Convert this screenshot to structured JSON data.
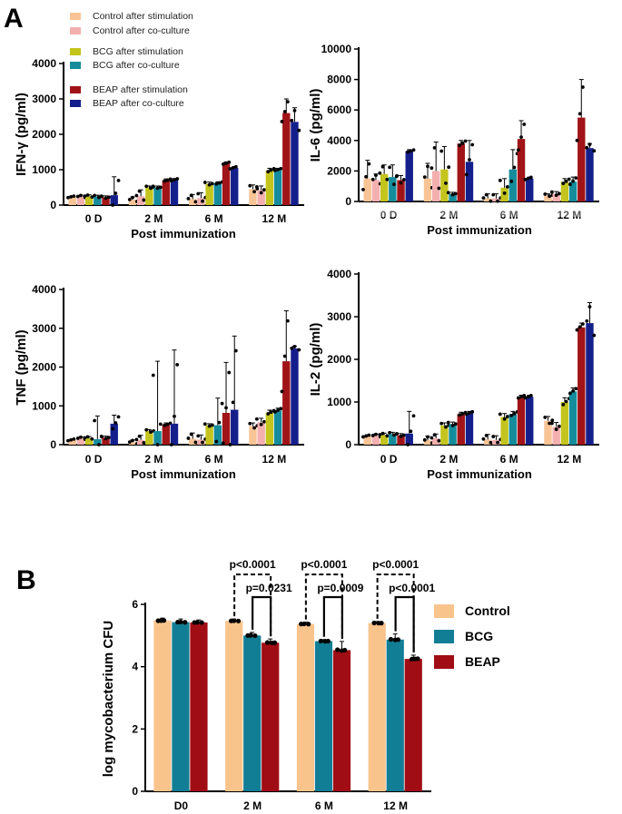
{
  "panels": {
    "a": "A",
    "b": "B"
  },
  "colors": {
    "ctrl_stim": "#F9C495",
    "ctrl_co": "#F4AFAF",
    "bcg_stim": "#C4C41E",
    "bcg_co": "#148C9C",
    "beap_stim": "#A01418",
    "beap_co": "#151F8C",
    "b_control": "#F9C48C",
    "b_bcg": "#127E95",
    "b_beap": "#A10D15"
  },
  "legend_a": [
    {
      "label": "Control after stimulation",
      "color": "#F9C495"
    },
    {
      "label": "Control after co-culture",
      "color": "#F4AFAF"
    },
    {
      "label": "BCG after stimulation",
      "color": "#C4C41E"
    },
    {
      "label": "BCG after co-culture",
      "color": "#148C9C"
    },
    {
      "label": "BEAP after stimulation",
      "color": "#A01418"
    },
    {
      "label": "BEAP after co-culture",
      "color": "#151F8C"
    }
  ],
  "chart_data": [
    {
      "id": "ifng",
      "type": "bar",
      "ylabel": "IFN-γ (pg/ml)",
      "xlabel": "Post immunization",
      "categories": [
        "0 D",
        "2 M",
        "6 M",
        "12 M"
      ],
      "ylim": [
        0,
        4000
      ],
      "yticks": [
        0,
        1000,
        2000,
        3000,
        4000
      ],
      "series": [
        {
          "name": "Control after stimulation",
          "values": [
            230,
            150,
            170,
            450
          ],
          "err": [
            30,
            80,
            130,
            120
          ]
        },
        {
          "name": "Control after co-culture",
          "values": [
            240,
            250,
            200,
            420
          ],
          "err": [
            40,
            180,
            150,
            120
          ]
        },
        {
          "name": "BCG after stimulation",
          "values": [
            250,
            500,
            600,
            980
          ],
          "err": [
            40,
            40,
            50,
            60
          ]
        },
        {
          "name": "BCG after co-culture",
          "values": [
            240,
            500,
            620,
            1000
          ],
          "err": [
            40,
            40,
            40,
            40
          ]
        },
        {
          "name": "BEAP after stimulation",
          "values": [
            220,
            700,
            1180,
            2600
          ],
          "err": [
            40,
            40,
            40,
            400
          ]
        },
        {
          "name": "BEAP after co-culture",
          "values": [
            280,
            710,
            1050,
            2350
          ],
          "err": [
            520,
            40,
            40,
            400
          ]
        }
      ]
    },
    {
      "id": "il6",
      "type": "bar",
      "ylabel": "IL-6 (pg/ml)",
      "xlabel": "Post immunization",
      "categories": [
        "0 D",
        "2 M",
        "6 M",
        "12 M"
      ],
      "ylim": [
        0,
        10000
      ],
      "yticks": [
        0,
        2000,
        4000,
        6000,
        8000,
        10000
      ],
      "series": [
        {
          "name": "Control after stimulation",
          "values": [
            1500,
            1500,
            200,
            400
          ],
          "err": [
            1200,
            1000,
            300,
            100
          ]
        },
        {
          "name": "Control after co-culture",
          "values": [
            1400,
            2000,
            200,
            500
          ],
          "err": [
            400,
            1900,
            300,
            150
          ]
        },
        {
          "name": "BCG after stimulation",
          "values": [
            1800,
            2100,
            900,
            1300
          ],
          "err": [
            600,
            1500,
            600,
            200
          ]
        },
        {
          "name": "BCG after co-culture",
          "values": [
            1600,
            500,
            2100,
            1300
          ],
          "err": [
            800,
            100,
            1300,
            300
          ]
        },
        {
          "name": "BEAP after stimulation",
          "values": [
            1400,
            3800,
            4100,
            5500
          ],
          "err": [
            300,
            200,
            1200,
            2500
          ]
        },
        {
          "name": "BEAP after co-culture",
          "values": [
            3300,
            2600,
            1500,
            3500
          ],
          "err": [
            100,
            1400,
            100,
            300
          ]
        }
      ]
    },
    {
      "id": "tnf",
      "type": "bar",
      "ylabel": "TNF (pg/ml)",
      "xlabel": "Post immunization",
      "categories": [
        "0 D",
        "2 M",
        "6 M",
        "12 M"
      ],
      "ylim": [
        0,
        4000
      ],
      "yticks": [
        0,
        1000,
        2000,
        3000,
        4000
      ],
      "series": [
        {
          "name": "Control after stimulation",
          "values": [
            120,
            60,
            150,
            480
          ],
          "err": [
            30,
            60,
            150,
            80
          ]
        },
        {
          "name": "Control after co-culture",
          "values": [
            160,
            120,
            130,
            580
          ],
          "err": [
            40,
            120,
            120,
            100
          ]
        },
        {
          "name": "BCG after stimulation",
          "values": [
            170,
            350,
            500,
            830
          ],
          "err": [
            40,
            40,
            40,
            60
          ]
        },
        {
          "name": "BCG after co-culture",
          "values": [
            140,
            350,
            500,
            880
          ],
          "err": [
            600,
            1800,
            700,
            60
          ]
        },
        {
          "name": "BEAP after stimulation",
          "values": [
            180,
            520,
            820,
            2150
          ],
          "err": [
            40,
            40,
            1300,
            1300
          ]
        },
        {
          "name": "BEAP after co-culture",
          "values": [
            540,
            540,
            900,
            2480
          ],
          "err": [
            220,
            1900,
            1900,
            60
          ]
        }
      ]
    },
    {
      "id": "il2",
      "type": "bar",
      "ylabel": "IL-2 (pg/ml)",
      "xlabel": "Post immunization",
      "categories": [
        "0 D",
        "2 M",
        "6 M",
        "12 M"
      ],
      "ylim": [
        0,
        4000
      ],
      "yticks": [
        0,
        1000,
        2000,
        3000,
        4000
      ],
      "series": [
        {
          "name": "Control after stimulation",
          "values": [
            200,
            100,
            120,
            560
          ],
          "err": [
            30,
            100,
            120,
            100
          ]
        },
        {
          "name": "Control after co-culture",
          "values": [
            210,
            150,
            110,
            420
          ],
          "err": [
            40,
            100,
            100,
            100
          ]
        },
        {
          "name": "BCG after stimulation",
          "values": [
            230,
            450,
            650,
            1000
          ],
          "err": [
            40,
            60,
            80,
            100
          ]
        },
        {
          "name": "BCG after co-culture",
          "values": [
            250,
            480,
            720,
            1250
          ],
          "err": [
            40,
            50,
            60,
            80
          ]
        },
        {
          "name": "BEAP after stimulation",
          "values": [
            220,
            720,
            1120,
            2750
          ],
          "err": [
            40,
            40,
            40,
            100
          ]
        },
        {
          "name": "BEAP after co-culture",
          "values": [
            260,
            740,
            1120,
            2850
          ],
          "err": [
            520,
            40,
            40,
            480
          ]
        }
      ]
    },
    {
      "id": "cfu",
      "type": "bar",
      "ylabel": "log mycobacterium CFU",
      "xlabel": "",
      "categories": [
        "D0",
        "2 M",
        "6 M",
        "12 M"
      ],
      "ylim": [
        0,
        6
      ],
      "yticks": [
        0,
        2,
        4,
        6
      ],
      "legend_position": "right",
      "series": [
        {
          "name": "Control",
          "values": [
            5.48,
            5.47,
            5.37,
            5.4
          ],
          "err": [
            0.08,
            0.06,
            0.06,
            0.05
          ]
        },
        {
          "name": "BCG",
          "values": [
            5.43,
            5.0,
            4.82,
            4.87
          ],
          "err": [
            0.1,
            0.1,
            0.05,
            0.18
          ]
        },
        {
          "name": "BEAP",
          "values": [
            5.42,
            4.77,
            4.53,
            4.25
          ],
          "err": [
            0.08,
            0.12,
            0.28,
            0.12
          ]
        }
      ],
      "comparisons": [
        {
          "category": "2 M",
          "outer": "p<0.0001",
          "inner": "p=0.0231"
        },
        {
          "category": "6 M",
          "outer": "p<0.0001",
          "inner": "p=0.0009"
        },
        {
          "category": "12 M",
          "outer": "p<0.0001",
          "inner": "p<0.0001"
        }
      ]
    }
  ]
}
